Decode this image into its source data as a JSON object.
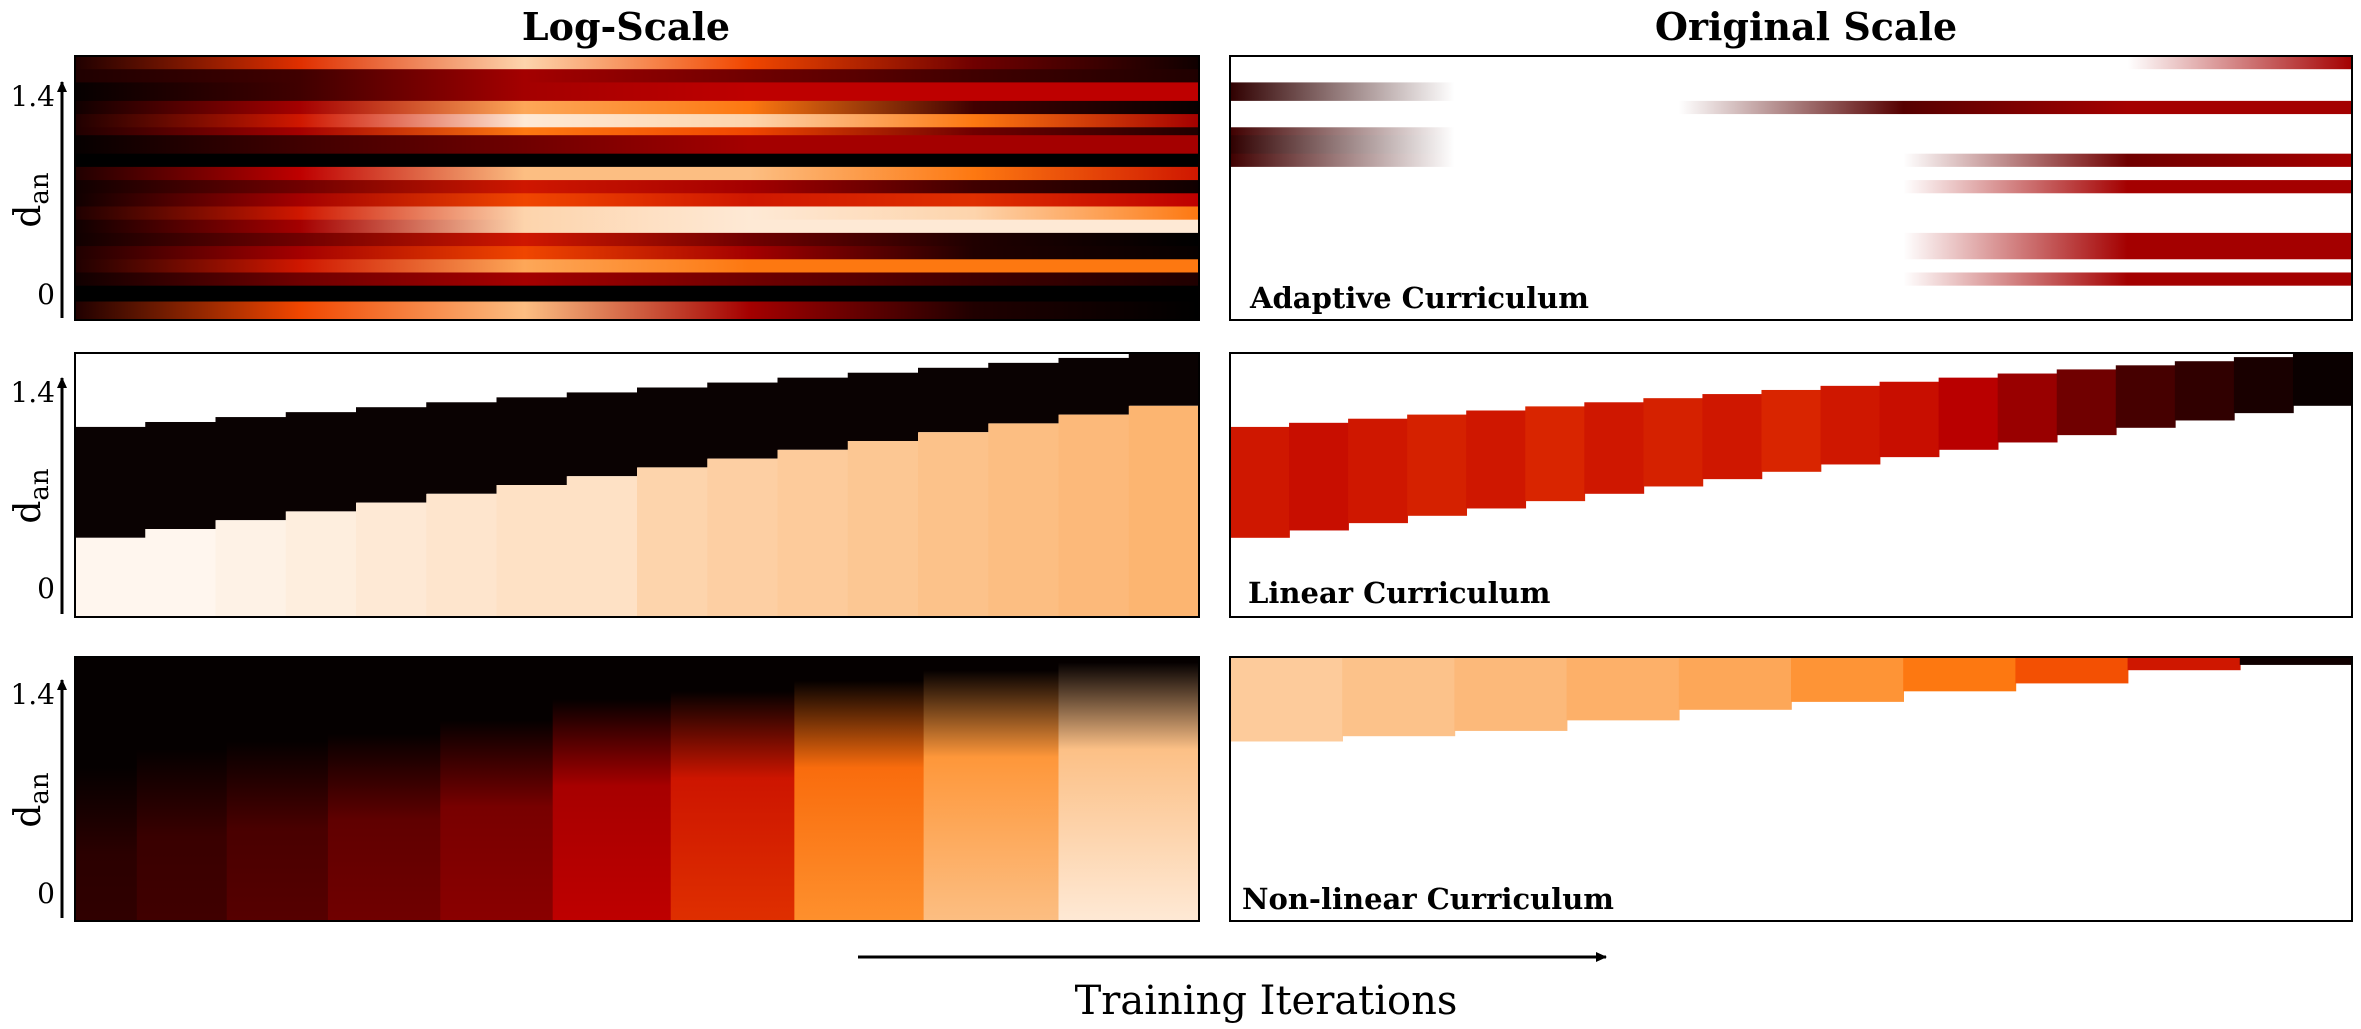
{
  "chart_data": {
    "type": "heatmap",
    "column_titles": [
      "Log-Scale",
      "Original Scale"
    ],
    "xlabel": "Training Iterations",
    "ylabel_main": "d",
    "ylabel_sub": "an",
    "y_ticks": [
      "1.4",
      "0"
    ],
    "panel_labels": [
      "Adaptive Curriculum",
      "Linear Curriculum",
      "Non-linear Curriculum"
    ],
    "rows": [
      {
        "name": "adaptive",
        "label": "Adaptive Curriculum",
        "stripes": [
          {
            "y0": 0.0,
            "y1": 0.05,
            "log": [
              0.1,
              0.55,
              0.9,
              0.6,
              0.3,
              0.05
            ],
            "orig": [
              0.0,
              0.0,
              0.0,
              0.0,
              0.0,
              0.4
            ]
          },
          {
            "y0": 0.05,
            "y1": 0.1,
            "log": [
              0.1,
              0.2,
              0.4,
              0.3,
              0.2,
              0.1
            ],
            "orig": [
              0.0,
              0.0,
              0.0,
              0.0,
              0.0,
              0.0
            ]
          },
          {
            "y0": 0.1,
            "y1": 0.17,
            "log": [
              0.02,
              0.2,
              0.4,
              0.45,
              0.45,
              0.45
            ],
            "orig": [
              0.15,
              0.0,
              0.0,
              0.0,
              0.0,
              0.0
            ]
          },
          {
            "y0": 0.17,
            "y1": 0.22,
            "log": [
              0.05,
              0.4,
              0.8,
              0.7,
              0.2,
              0.02
            ],
            "orig": [
              0.0,
              0.0,
              0.0,
              0.25,
              0.4,
              0.4
            ]
          },
          {
            "y0": 0.22,
            "y1": 0.27,
            "log": [
              0.1,
              0.5,
              0.95,
              0.9,
              0.7,
              0.4
            ],
            "orig": [
              0.0,
              0.0,
              0.0,
              0.0,
              0.0,
              0.0
            ]
          },
          {
            "y0": 0.27,
            "y1": 0.3,
            "log": [
              0.1,
              0.4,
              0.7,
              0.6,
              0.3,
              0.1
            ],
            "orig": [
              0.2,
              0.0,
              0.0,
              0.0,
              0.0,
              0.0
            ]
          },
          {
            "y0": 0.3,
            "y1": 0.37,
            "log": [
              0.02,
              0.2,
              0.3,
              0.4,
              0.4,
              0.4
            ],
            "orig": [
              0.15,
              0.0,
              0.0,
              0.0,
              0.0,
              0.0
            ]
          },
          {
            "y0": 0.37,
            "y1": 0.42,
            "log": [
              0.0,
              0.0,
              0.0,
              0.0,
              0.0,
              0.0
            ],
            "orig": [
              0.2,
              0.0,
              0.0,
              0.0,
              0.3,
              0.4
            ]
          },
          {
            "y0": 0.42,
            "y1": 0.47,
            "log": [
              0.1,
              0.45,
              0.85,
              0.85,
              0.7,
              0.5
            ],
            "orig": [
              0.0,
              0.0,
              0.0,
              0.0,
              0.0,
              0.0
            ]
          },
          {
            "y0": 0.47,
            "y1": 0.52,
            "log": [
              0.05,
              0.3,
              0.5,
              0.4,
              0.2,
              0.05
            ],
            "orig": [
              0.0,
              0.0,
              0.0,
              0.0,
              0.4,
              0.4
            ]
          },
          {
            "y0": 0.52,
            "y1": 0.57,
            "log": [
              0.05,
              0.4,
              0.6,
              0.5,
              0.55,
              0.45
            ],
            "orig": [
              0.0,
              0.0,
              0.0,
              0.0,
              0.0,
              0.0
            ]
          },
          {
            "y0": 0.57,
            "y1": 0.62,
            "log": [
              0.1,
              0.5,
              0.9,
              0.95,
              0.9,
              0.7
            ],
            "orig": [
              0.0,
              0.0,
              0.0,
              0.0,
              0.0,
              0.0
            ]
          },
          {
            "y0": 0.62,
            "y1": 0.67,
            "log": [
              0.05,
              0.4,
              0.9,
              0.95,
              0.95,
              0.95
            ],
            "orig": [
              0.0,
              0.0,
              0.0,
              0.0,
              0.0,
              0.0
            ]
          },
          {
            "y0": 0.67,
            "y1": 0.72,
            "log": [
              0.05,
              0.3,
              0.5,
              0.3,
              0.1,
              0.0
            ],
            "orig": [
              0.0,
              0.0,
              0.0,
              0.0,
              0.4,
              0.4
            ]
          },
          {
            "y0": 0.72,
            "y1": 0.77,
            "log": [
              0.1,
              0.4,
              0.6,
              0.4,
              0.1,
              0.02
            ],
            "orig": [
              0.0,
              0.0,
              0.0,
              0.0,
              0.4,
              0.4
            ]
          },
          {
            "y0": 0.77,
            "y1": 0.82,
            "log": [
              0.1,
              0.5,
              0.8,
              0.7,
              0.7,
              0.7
            ],
            "orig": [
              0.0,
              0.0,
              0.0,
              0.0,
              0.0,
              0.0
            ]
          },
          {
            "y0": 0.82,
            "y1": 0.87,
            "log": [
              0.05,
              0.3,
              0.4,
              0.3,
              0.2,
              0.1
            ],
            "orig": [
              0.0,
              0.0,
              0.0,
              0.0,
              0.4,
              0.4
            ]
          },
          {
            "y0": 0.87,
            "y1": 0.93,
            "log": [
              0.0,
              0.0,
              0.0,
              0.0,
              0.0,
              0.0
            ],
            "orig": [
              0.0,
              0.0,
              0.0,
              0.0,
              0.0,
              0.0
            ]
          },
          {
            "y0": 0.93,
            "y1": 1.0,
            "log": [
              0.1,
              0.6,
              0.85,
              0.4,
              0.1,
              0.0
            ],
            "orig": [
              0.0,
              0.0,
              0.0,
              0.0,
              0.0,
              0.0
            ]
          }
        ]
      },
      {
        "name": "linear",
        "label": "Linear Curriculum",
        "stages": 16,
        "log_black_start": 0.28,
        "log_black_end": 0.0,
        "log_white_start": 0.7,
        "log_white_end": 0.2,
        "log_white_tint": [
          0.98,
          0.98,
          0.97,
          0.96,
          0.95,
          0.94,
          0.93,
          0.93,
          0.9,
          0.89,
          0.88,
          0.87,
          0.86,
          0.85,
          0.84,
          0.83
        ],
        "orig_top_start": 0.28,
        "orig_top_end": 0.0,
        "orig_bottom_start": 0.7,
        "orig_bottom_end": 0.2,
        "orig_values": [
          0.5,
          0.48,
          0.5,
          0.52,
          0.5,
          0.53,
          0.5,
          0.52,
          0.5,
          0.53,
          0.5,
          0.48,
          0.44,
          0.38,
          0.3,
          0.22,
          0.15,
          0.08,
          0.03
        ]
      },
      {
        "name": "nonlinear",
        "label": "Non-linear Curriculum",
        "log_values": [
          0.15,
          0.2,
          0.25,
          0.3,
          0.35,
          0.45,
          0.55,
          0.75,
          0.85,
          0.95
        ],
        "log_top": [
          0.4,
          0.33,
          0.3,
          0.27,
          0.22,
          0.14,
          0.11,
          0.07,
          0.03,
          0.0
        ],
        "orig_values": [
          0.88,
          0.86,
          0.84,
          0.82,
          0.8,
          0.76,
          0.7,
          0.62,
          0.5,
          0.05
        ],
        "orig_bottom": [
          0.32,
          0.3,
          0.28,
          0.24,
          0.2,
          0.17,
          0.13,
          0.1,
          0.05,
          0.03
        ]
      }
    ]
  }
}
